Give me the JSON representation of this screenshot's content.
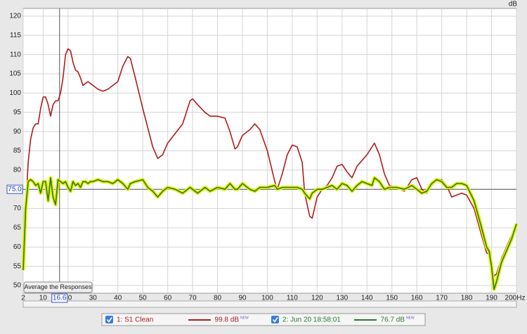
{
  "chart_data": {
    "type": "line",
    "y_label": "dB",
    "xlim": [
      2,
      200
    ],
    "ylim": [
      48,
      122
    ],
    "xticks": [
      2,
      10,
      20,
      30,
      40,
      50,
      60,
      70,
      80,
      90,
      100,
      110,
      120,
      130,
      140,
      150,
      160,
      170,
      180,
      190,
      {
        "value": 200,
        "label": "200Hz"
      }
    ],
    "yticks": [
      50,
      55,
      60,
      65,
      70,
      75,
      80,
      85,
      90,
      95,
      100,
      105,
      110,
      115,
      120
    ],
    "grid": true,
    "cursor": {
      "x": 16.6,
      "y": {
        "value": 75,
        "label": "75.0"
      }
    },
    "button": "Average the Responses",
    "x": [
      2,
      3,
      4,
      5,
      6,
      7,
      8,
      9,
      10,
      11,
      12,
      13,
      14,
      15,
      16,
      17,
      18,
      19,
      20,
      21,
      22,
      23,
      24,
      25,
      26,
      27,
      28,
      29,
      30,
      32,
      34,
      36,
      38,
      40,
      42,
      44,
      45,
      47,
      50,
      52,
      54,
      56,
      58,
      60,
      63,
      66,
      69,
      70,
      72,
      75,
      77,
      80,
      83,
      85,
      87,
      88,
      90,
      93,
      95,
      97,
      100,
      103,
      104,
      106,
      108,
      110,
      112,
      114,
      115,
      117,
      118,
      120,
      122,
      124,
      126,
      128,
      130,
      132,
      134,
      136,
      138,
      140,
      142,
      143,
      145,
      147,
      149,
      152,
      155,
      158,
      160,
      162,
      164,
      166,
      168,
      170,
      172,
      174,
      176,
      178,
      180,
      183,
      186,
      188,
      189,
      190,
      191,
      192,
      194,
      196,
      198,
      200
    ],
    "series": [
      {
        "name": "1: S1 Clean",
        "color": "#b01c1c",
        "level": {
          "value": 99.8,
          "label": "99.8 dB"
        },
        "tag": "NEW",
        "values": [
          54,
          70,
          82,
          88,
          91,
          92,
          92,
          96,
          99,
          99,
          97,
          94,
          97,
          98,
          98,
          100,
          104,
          110,
          111.5,
          111,
          108,
          106,
          105.5,
          104,
          102,
          102.5,
          103,
          102.5,
          102,
          101,
          100.5,
          101,
          102,
          103,
          107,
          109.5,
          109,
          104,
          96,
          91,
          86,
          83,
          84,
          87,
          89.5,
          92,
          98,
          98.5,
          97,
          95,
          94,
          94,
          93.5,
          90,
          85.5,
          86,
          89,
          90.5,
          92,
          90.5,
          85,
          77,
          75,
          79,
          84,
          86.5,
          86,
          82,
          74,
          68,
          67.5,
          73,
          75,
          76,
          78,
          81,
          81.5,
          79.5,
          78,
          81,
          82.5,
          84,
          86,
          87,
          84,
          79,
          76,
          75.5,
          74.5,
          77.5,
          78,
          75,
          74,
          76,
          77.5,
          77.5,
          76,
          73,
          73.5,
          74,
          73.5,
          70,
          63,
          58.5,
          58,
          55,
          52.5,
          53,
          57,
          60,
          63,
          66
        ]
      },
      {
        "name": "2: Jun 20 18:58:01",
        "color": "#2a7a2a",
        "halo": "#e4f000",
        "level": {
          "value": 76.7,
          "label": "76.7 dB"
        },
        "tag": "NEW",
        "values": [
          54,
          70,
          77,
          77.5,
          77,
          76,
          76.5,
          74,
          77,
          77,
          72,
          78,
          73,
          71,
          77.5,
          77,
          76.5,
          77,
          75.5,
          74.5,
          77,
          76,
          76.5,
          75.5,
          77,
          77,
          76.5,
          77,
          77,
          77.5,
          77,
          77,
          76.5,
          77.5,
          76.5,
          75,
          76.5,
          77,
          77.5,
          75.5,
          74.5,
          73,
          74.5,
          75.5,
          75,
          74,
          75.5,
          75,
          74,
          75.5,
          74.5,
          75.5,
          75,
          76.5,
          75,
          75,
          76.5,
          75,
          74.5,
          75.5,
          75.5,
          76,
          75,
          75.5,
          75.5,
          75.5,
          75.5,
          75,
          74,
          72.5,
          74,
          75,
          75,
          75.5,
          76,
          75,
          76.5,
          76,
          74.5,
          76,
          77,
          76.5,
          76,
          78,
          77,
          75,
          75.5,
          75.5,
          75,
          76,
          75,
          74,
          74.5,
          76.5,
          77.5,
          77,
          75.5,
          75.5,
          76.5,
          76.5,
          76,
          72,
          65,
          60,
          59,
          55,
          49,
          51,
          56,
          59,
          62,
          66
        ]
      }
    ]
  }
}
